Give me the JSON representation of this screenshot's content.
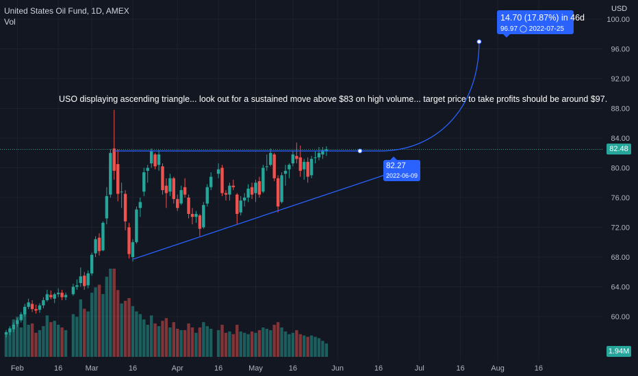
{
  "header": {
    "symbol_line": "United States Oil Fund, 1D, AMEX",
    "indicator": "Vol"
  },
  "axis": {
    "currency": "USD",
    "last_price_label": "82.48",
    "volume_label": "1.94M"
  },
  "annotation": {
    "text": "USO displaying ascending triangle... look out for a sustained move above $83 on high volume... target price to take profits should be around $97."
  },
  "measure": {
    "change": "14.70 (17.87%) in 46d",
    "target_price": "96.97",
    "target_date": "2022-07-25",
    "start_price": "82.27",
    "start_date": "2022-06-09"
  },
  "colors": {
    "background": "#131722",
    "up": "#26a69a",
    "down": "#ef5350",
    "drawing": "#2962ff",
    "grid": "#1e222d"
  },
  "chart_data": {
    "type": "candlestick",
    "y_ticks": [
      "60.00",
      "64.00",
      "68.00",
      "72.00",
      "76.00",
      "80.00",
      "84.00",
      "88.00",
      "92.00",
      "96.00",
      "100.00"
    ],
    "x_ticks": [
      "Feb",
      "16",
      "Mar",
      "16",
      "Apr",
      "16",
      "May",
      "16",
      "Jun",
      "16",
      "Jul",
      "16",
      "Aug",
      "16"
    ],
    "ylim": [
      56.5,
      101.5
    ],
    "grid": true,
    "candles": [
      {
        "date": "2022-01-27",
        "open": 57.6,
        "high": 58.2,
        "low": 57.2,
        "close": 57.9,
        "volume": 17
      },
      {
        "date": "2022-01-28",
        "open": 57.9,
        "high": 58.7,
        "low": 57.5,
        "close": 58.4,
        "volume": 20
      },
      {
        "date": "2022-01-31",
        "open": 58.3,
        "high": 59.2,
        "low": 57.9,
        "close": 58.9,
        "volume": 28
      },
      {
        "date": "2022-02-01",
        "open": 59.0,
        "high": 59.8,
        "low": 58.6,
        "close": 59.5,
        "volume": 30
      },
      {
        "date": "2022-02-02",
        "open": 59.5,
        "high": 60.6,
        "low": 59.2,
        "close": 60.3,
        "volume": 22
      },
      {
        "date": "2022-02-03",
        "open": 60.3,
        "high": 61.7,
        "low": 60.0,
        "close": 61.3,
        "volume": 33
      },
      {
        "date": "2022-02-04",
        "open": 61.3,
        "high": 62.4,
        "low": 61.0,
        "close": 61.9,
        "volume": 24
      },
      {
        "date": "2022-02-07",
        "open": 61.7,
        "high": 62.2,
        "low": 60.6,
        "close": 61.0,
        "volume": 25
      },
      {
        "date": "2022-02-08",
        "open": 61.0,
        "high": 61.6,
        "low": 60.4,
        "close": 60.8,
        "volume": 18
      },
      {
        "date": "2022-02-09",
        "open": 60.9,
        "high": 61.8,
        "low": 60.5,
        "close": 61.5,
        "volume": 20
      },
      {
        "date": "2022-02-10",
        "open": 61.5,
        "high": 62.6,
        "low": 61.1,
        "close": 62.2,
        "volume": 23
      },
      {
        "date": "2022-02-11",
        "open": 62.2,
        "high": 63.6,
        "low": 62.0,
        "close": 63.0,
        "volume": 31
      },
      {
        "date": "2022-02-14",
        "open": 62.9,
        "high": 63.5,
        "low": 62.3,
        "close": 62.6,
        "volume": 26
      },
      {
        "date": "2022-02-15",
        "open": 62.4,
        "high": 63.2,
        "low": 61.8,
        "close": 63.0,
        "volume": 27
      },
      {
        "date": "2022-02-16",
        "open": 63.0,
        "high": 63.8,
        "low": 62.6,
        "close": 63.2,
        "volume": 24
      },
      {
        "date": "2022-02-17",
        "open": 63.2,
        "high": 63.6,
        "low": 62.2,
        "close": 62.6,
        "volume": 22
      },
      {
        "date": "2022-02-18",
        "open": 62.6,
        "high": 63.2,
        "low": 62.2,
        "close": 62.9,
        "volume": 20
      },
      {
        "date": "2022-02-22",
        "open": 63.0,
        "high": 64.4,
        "low": 62.8,
        "close": 64.0,
        "volume": 32
      },
      {
        "date": "2022-02-23",
        "open": 64.0,
        "high": 65.0,
        "low": 63.6,
        "close": 64.2,
        "volume": 30
      },
      {
        "date": "2022-02-24",
        "open": 64.5,
        "high": 66.6,
        "low": 64.0,
        "close": 65.4,
        "volume": 43
      },
      {
        "date": "2022-02-25",
        "open": 65.5,
        "high": 66.0,
        "low": 63.6,
        "close": 64.1,
        "volume": 36
      },
      {
        "date": "2022-02-28",
        "open": 64.2,
        "high": 66.2,
        "low": 63.8,
        "close": 65.8,
        "volume": 34
      },
      {
        "date": "2022-03-01",
        "open": 65.8,
        "high": 68.6,
        "low": 65.5,
        "close": 68.3,
        "volume": 48
      },
      {
        "date": "2022-03-02",
        "open": 68.5,
        "high": 70.8,
        "low": 68.0,
        "close": 70.4,
        "volume": 52
      },
      {
        "date": "2022-03-03",
        "open": 70.6,
        "high": 71.2,
        "low": 68.2,
        "close": 68.8,
        "volume": 54
      },
      {
        "date": "2022-03-04",
        "open": 68.9,
        "high": 72.8,
        "low": 68.8,
        "close": 72.6,
        "volume": 47
      },
      {
        "date": "2022-03-07",
        "open": 73.2,
        "high": 77.4,
        "low": 72.4,
        "close": 76.2,
        "volume": 60
      },
      {
        "date": "2022-03-08",
        "open": 76.4,
        "high": 82.5,
        "low": 76.0,
        "close": 82.0,
        "volume": 66
      },
      {
        "date": "2022-03-09",
        "open": 82.6,
        "high": 87.8,
        "low": 78.4,
        "close": 79.6,
        "volume": 66
      },
      {
        "date": "2022-03-10",
        "open": 80.5,
        "high": 82.5,
        "low": 75.5,
        "close": 76.5,
        "volume": 50
      },
      {
        "date": "2022-03-11",
        "open": 76.8,
        "high": 78.0,
        "low": 74.6,
        "close": 76.8,
        "volume": 40
      },
      {
        "date": "2022-03-14",
        "open": 76.5,
        "high": 77.0,
        "low": 71.6,
        "close": 72.8,
        "volume": 42
      },
      {
        "date": "2022-03-15",
        "open": 72.0,
        "high": 72.6,
        "low": 67.8,
        "close": 68.4,
        "volume": 44
      },
      {
        "date": "2022-03-16",
        "open": 68.0,
        "high": 70.4,
        "low": 67.4,
        "close": 70.0,
        "volume": 38
      },
      {
        "date": "2022-03-17",
        "open": 70.0,
        "high": 74.8,
        "low": 69.8,
        "close": 74.4,
        "volume": 34
      },
      {
        "date": "2022-03-18",
        "open": 74.6,
        "high": 76.0,
        "low": 73.4,
        "close": 75.4,
        "volume": 32
      },
      {
        "date": "2022-03-21",
        "open": 76.8,
        "high": 80.0,
        "low": 76.2,
        "close": 79.4,
        "volume": 28
      },
      {
        "date": "2022-03-22",
        "open": 79.6,
        "high": 80.4,
        "low": 78.0,
        "close": 80.0,
        "volume": 24
      },
      {
        "date": "2022-03-23",
        "open": 80.6,
        "high": 82.6,
        "low": 80.0,
        "close": 82.2,
        "volume": 31
      },
      {
        "date": "2022-03-24",
        "open": 81.8,
        "high": 82.0,
        "low": 79.8,
        "close": 80.2,
        "volume": 25
      },
      {
        "date": "2022-03-25",
        "open": 80.4,
        "high": 82.4,
        "low": 79.6,
        "close": 81.8,
        "volume": 23
      },
      {
        "date": "2022-03-28",
        "open": 80.2,
        "high": 80.6,
        "low": 76.4,
        "close": 77.0,
        "volume": 27
      },
      {
        "date": "2022-03-29",
        "open": 77.6,
        "high": 78.6,
        "low": 74.6,
        "close": 76.6,
        "volume": 29
      },
      {
        "date": "2022-03-30",
        "open": 76.8,
        "high": 79.2,
        "low": 76.2,
        "close": 78.6,
        "volume": 22
      },
      {
        "date": "2022-03-31",
        "open": 78.6,
        "high": 78.8,
        "low": 75.2,
        "close": 75.8,
        "volume": 26
      },
      {
        "date": "2022-04-01",
        "open": 75.8,
        "high": 76.4,
        "low": 74.2,
        "close": 74.6,
        "volume": 21
      },
      {
        "date": "2022-04-04",
        "open": 75.2,
        "high": 77.6,
        "low": 75.0,
        "close": 77.0,
        "volume": 20
      },
      {
        "date": "2022-04-05",
        "open": 77.4,
        "high": 78.6,
        "low": 76.0,
        "close": 76.4,
        "volume": 20
      },
      {
        "date": "2022-04-06",
        "open": 76.0,
        "high": 76.4,
        "low": 73.2,
        "close": 73.8,
        "volume": 25
      },
      {
        "date": "2022-04-07",
        "open": 73.8,
        "high": 74.6,
        "low": 72.4,
        "close": 73.4,
        "volume": 22
      },
      {
        "date": "2022-04-08",
        "open": 73.4,
        "high": 74.2,
        "low": 72.6,
        "close": 73.8,
        "volume": 18
      },
      {
        "date": "2022-04-11",
        "open": 73.6,
        "high": 73.8,
        "low": 70.8,
        "close": 71.8,
        "volume": 22
      },
      {
        "date": "2022-04-12",
        "open": 72.0,
        "high": 75.4,
        "low": 71.8,
        "close": 75.0,
        "volume": 26
      },
      {
        "date": "2022-04-13",
        "open": 75.2,
        "high": 77.8,
        "low": 74.8,
        "close": 77.4,
        "volume": 23
      },
      {
        "date": "2022-04-14",
        "open": 77.4,
        "high": 79.4,
        "low": 77.0,
        "close": 78.8,
        "volume": 21
      },
      {
        "date": "2022-04-18",
        "open": 79.2,
        "high": 80.6,
        "low": 78.6,
        "close": 79.8,
        "volume": 20
      },
      {
        "date": "2022-04-19",
        "open": 80.0,
        "high": 80.4,
        "low": 76.2,
        "close": 76.6,
        "volume": 24
      },
      {
        "date": "2022-04-20",
        "open": 76.6,
        "high": 77.0,
        "low": 75.6,
        "close": 76.4,
        "volume": 18
      },
      {
        "date": "2022-04-21",
        "open": 76.4,
        "high": 78.0,
        "low": 75.6,
        "close": 77.6,
        "volume": 19
      },
      {
        "date": "2022-04-22",
        "open": 77.6,
        "high": 78.4,
        "low": 77.0,
        "close": 77.4,
        "volume": 17
      },
      {
        "date": "2022-04-25",
        "open": 76.4,
        "high": 76.6,
        "low": 72.4,
        "close": 73.8,
        "volume": 24
      },
      {
        "date": "2022-04-26",
        "open": 74.0,
        "high": 76.2,
        "low": 73.6,
        "close": 75.6,
        "volume": 19
      },
      {
        "date": "2022-04-27",
        "open": 75.6,
        "high": 76.6,
        "low": 74.8,
        "close": 76.0,
        "volume": 18
      },
      {
        "date": "2022-04-28",
        "open": 76.0,
        "high": 77.8,
        "low": 75.4,
        "close": 77.2,
        "volume": 17
      },
      {
        "date": "2022-04-29",
        "open": 77.4,
        "high": 78.0,
        "low": 75.8,
        "close": 76.4,
        "volume": 19
      },
      {
        "date": "2022-05-02",
        "open": 76.6,
        "high": 78.4,
        "low": 75.4,
        "close": 78.0,
        "volume": 18
      },
      {
        "date": "2022-05-03",
        "open": 78.2,
        "high": 78.8,
        "low": 76.0,
        "close": 76.4,
        "volume": 20
      },
      {
        "date": "2022-05-04",
        "open": 76.8,
        "high": 80.4,
        "low": 76.6,
        "close": 80.0,
        "volume": 22
      },
      {
        "date": "2022-05-05",
        "open": 80.2,
        "high": 81.8,
        "low": 79.6,
        "close": 80.2,
        "volume": 21
      },
      {
        "date": "2022-05-06",
        "open": 80.4,
        "high": 82.6,
        "low": 80.2,
        "close": 82.0,
        "volume": 20
      },
      {
        "date": "2022-05-09",
        "open": 81.8,
        "high": 82.0,
        "low": 78.2,
        "close": 78.6,
        "volume": 24
      },
      {
        "date": "2022-05-10",
        "open": 78.6,
        "high": 79.0,
        "low": 74.0,
        "close": 74.8,
        "volume": 26
      },
      {
        "date": "2022-05-11",
        "open": 75.4,
        "high": 79.4,
        "low": 75.2,
        "close": 79.0,
        "volume": 22
      },
      {
        "date": "2022-05-12",
        "open": 79.2,
        "high": 80.4,
        "low": 77.6,
        "close": 79.6,
        "volume": 19
      },
      {
        "date": "2022-05-13",
        "open": 79.8,
        "high": 80.6,
        "low": 78.6,
        "close": 80.4,
        "volume": 17
      },
      {
        "date": "2022-05-16",
        "open": 80.6,
        "high": 82.2,
        "low": 80.2,
        "close": 81.8,
        "volume": 18
      },
      {
        "date": "2022-05-17",
        "open": 81.6,
        "high": 83.4,
        "low": 80.6,
        "close": 81.2,
        "volume": 20
      },
      {
        "date": "2022-05-18",
        "open": 81.4,
        "high": 83.0,
        "low": 78.8,
        "close": 79.6,
        "volume": 17
      },
      {
        "date": "2022-05-19",
        "open": 79.8,
        "high": 81.2,
        "low": 78.4,
        "close": 80.8,
        "volume": 16
      },
      {
        "date": "2022-05-20",
        "open": 80.8,
        "high": 81.4,
        "low": 78.0,
        "close": 78.8,
        "volume": 15
      },
      {
        "date": "2022-05-23",
        "open": 79.0,
        "high": 81.6,
        "low": 78.6,
        "close": 81.2,
        "volume": 16
      },
      {
        "date": "2022-05-24",
        "open": 81.4,
        "high": 82.2,
        "low": 80.6,
        "close": 81.4,
        "volume": 15
      },
      {
        "date": "2022-05-25",
        "open": 81.4,
        "high": 82.8,
        "low": 81.0,
        "close": 82.0,
        "volume": 14
      },
      {
        "date": "2022-05-26",
        "open": 81.8,
        "high": 82.8,
        "low": 81.2,
        "close": 82.4,
        "volume": 12
      },
      {
        "date": "2022-05-27",
        "open": 82.2,
        "high": 82.9,
        "low": 81.6,
        "close": 82.48,
        "volume": 10
      }
    ]
  }
}
